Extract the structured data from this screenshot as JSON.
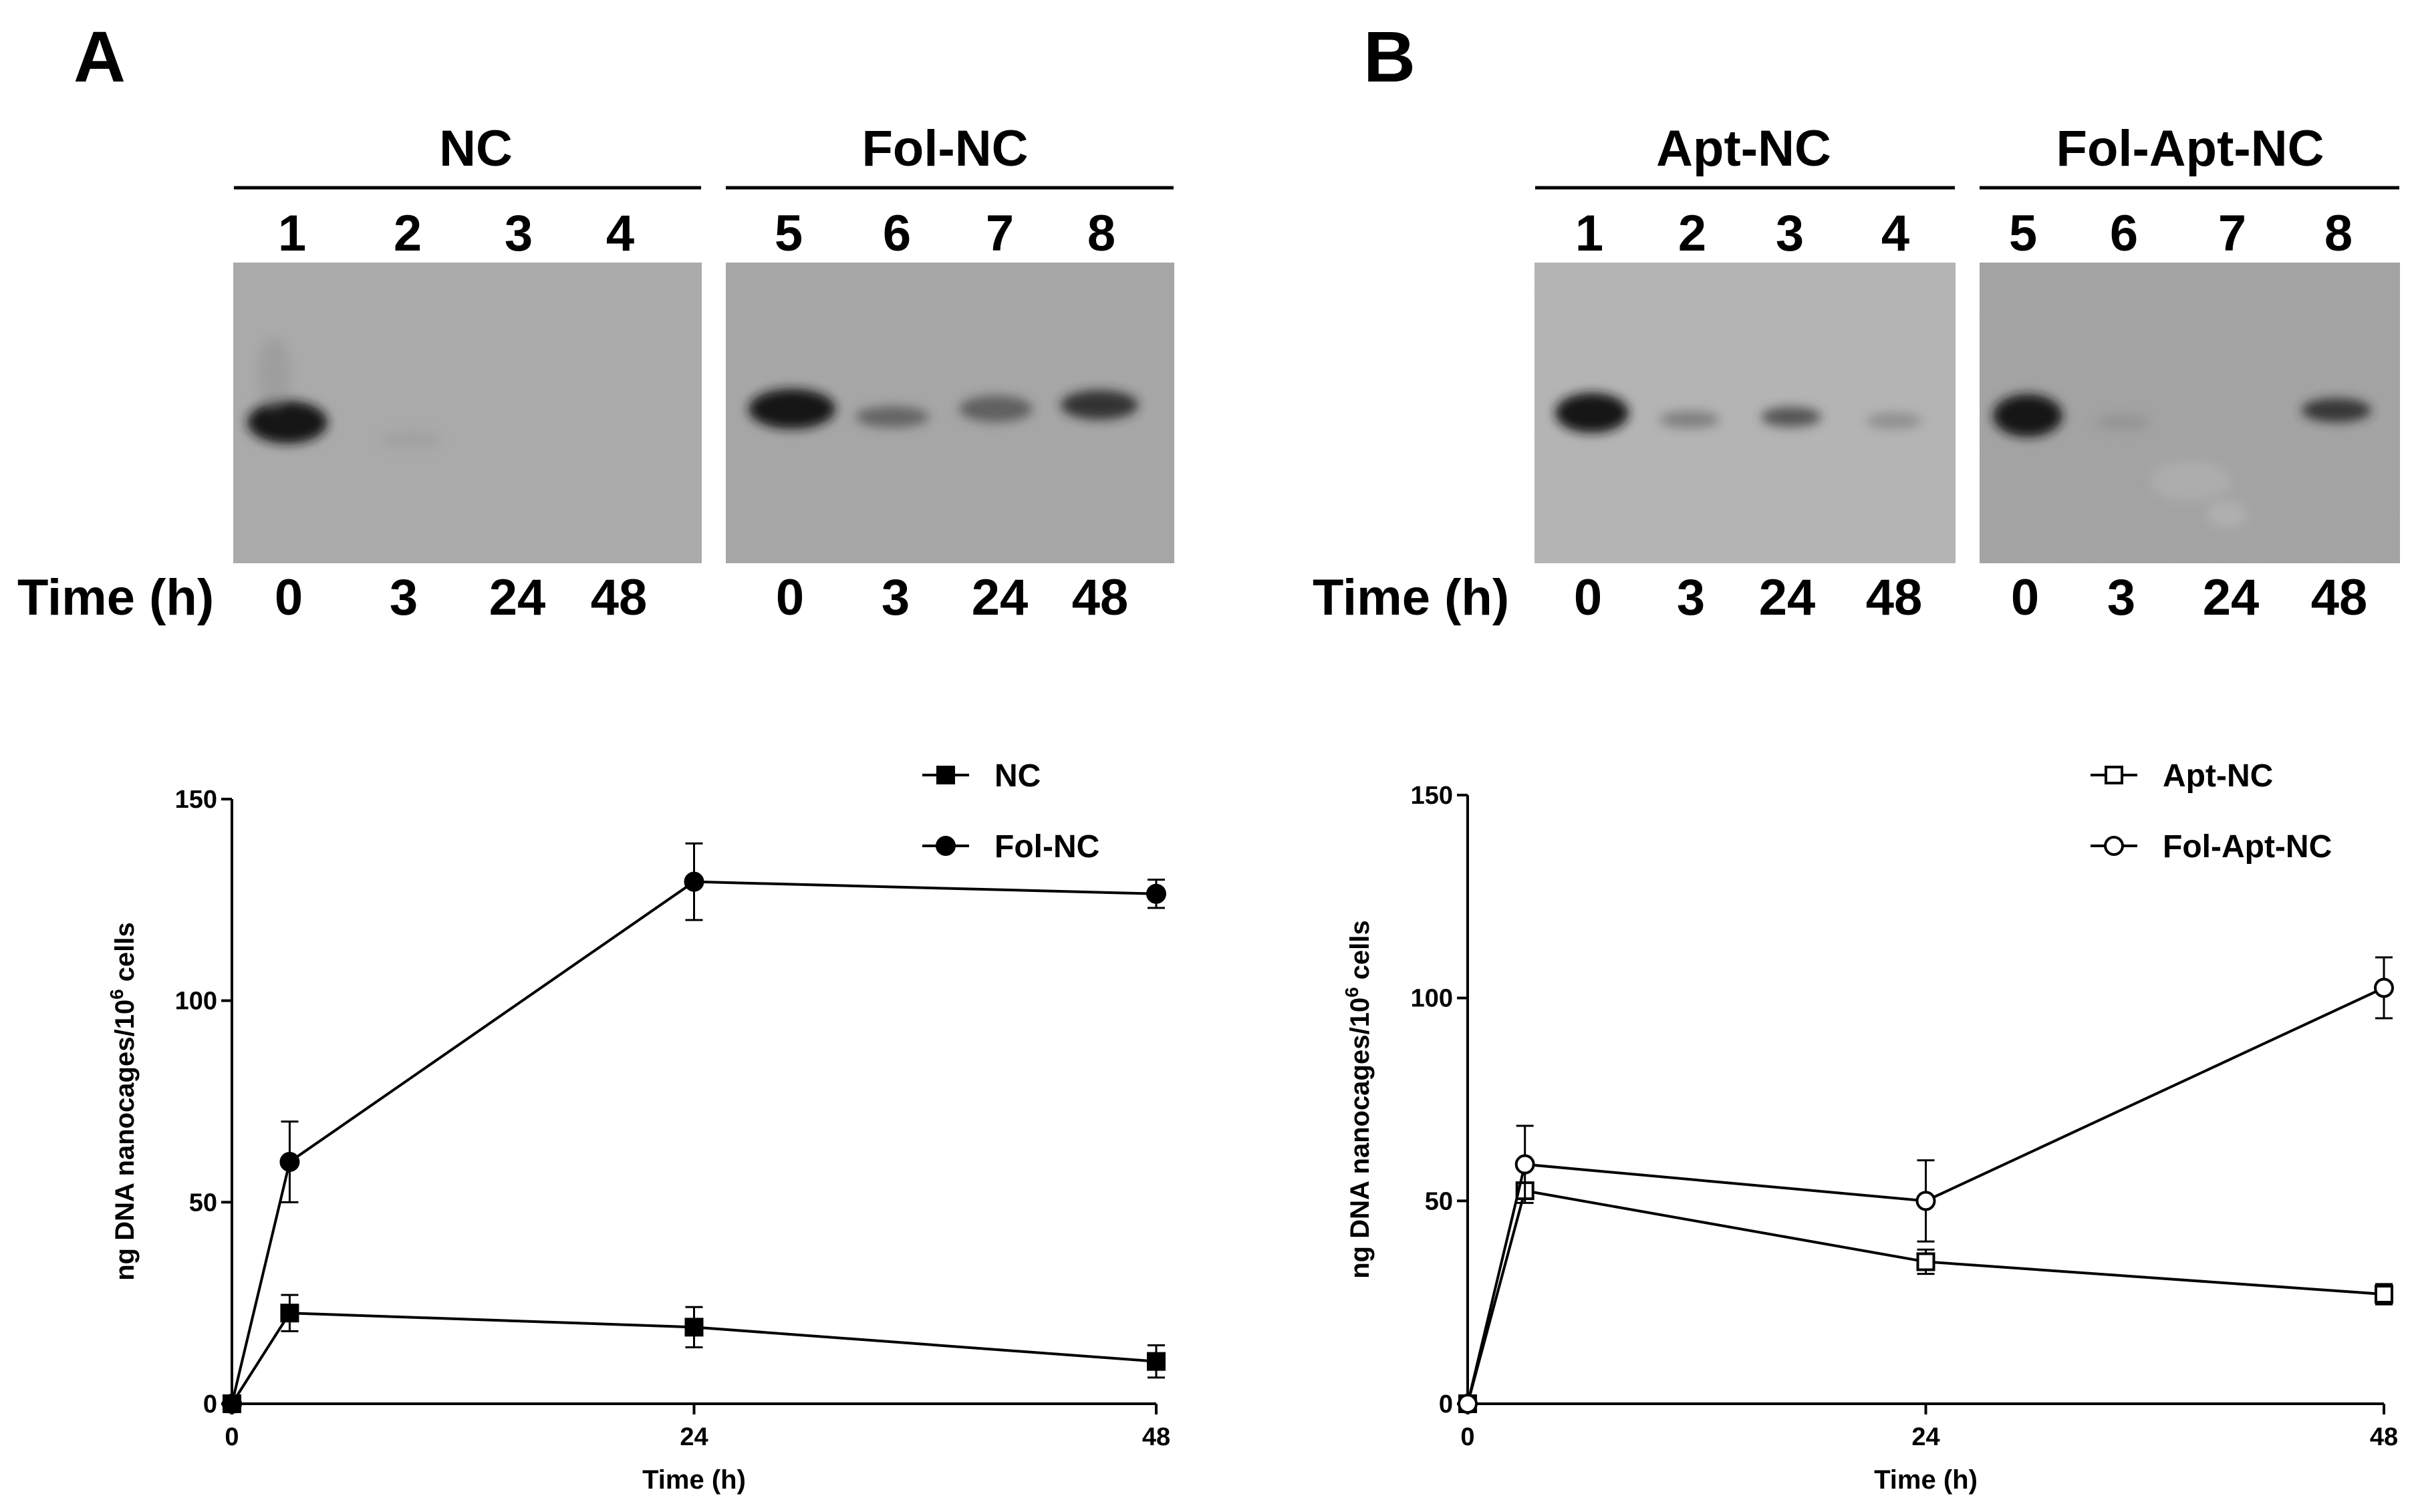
{
  "panels": [
    {
      "letter": "A",
      "gel": {
        "group1_title": "NC",
        "group2_title": "Fol-NC",
        "lanes": [
          "1",
          "2",
          "3",
          "4",
          "5",
          "6",
          "7",
          "8"
        ],
        "time_label": "Time (h)",
        "times": [
          "0",
          "3",
          "24",
          "48",
          "0",
          "3",
          "24",
          "48"
        ]
      }
    },
    {
      "letter": "B",
      "gel": {
        "group1_title": "Apt-NC",
        "group2_title": "Fol-Apt-NC",
        "lanes": [
          "1",
          "2",
          "3",
          "4",
          "5",
          "6",
          "7",
          "8"
        ],
        "time_label": "Time (h)",
        "times": [
          "0",
          "3",
          "24",
          "48",
          "0",
          "3",
          "24",
          "48"
        ]
      }
    }
  ],
  "chart_data": [
    {
      "type": "line",
      "panel": "A",
      "xlabel": "Time (h)",
      "ylabel": "ng DNA nanocages/10",
      "ylabel_sup": "6",
      "ylabel_tail": " cells",
      "xlim": [
        0,
        48
      ],
      "ylim": [
        0,
        150
      ],
      "xticks": [
        0,
        24,
        48
      ],
      "yticks": [
        0,
        50,
        100,
        150
      ],
      "legend_position": "top-right",
      "series": [
        {
          "name": "NC",
          "marker": "square-filled",
          "x": [
            0,
            3,
            24,
            48
          ],
          "y": [
            0,
            22.5,
            19,
            10.5
          ],
          "err": [
            0,
            4.5,
            5,
            4
          ]
        },
        {
          "name": "Fol-NC",
          "marker": "circle-filled",
          "x": [
            0,
            3,
            24,
            48
          ],
          "y": [
            0,
            60,
            129.5,
            126.5
          ],
          "err": [
            0,
            10,
            9.5,
            3.5
          ]
        }
      ]
    },
    {
      "type": "line",
      "panel": "B",
      "xlabel": "Time (h)",
      "ylabel": "ng DNA nanocages/10",
      "ylabel_sup": "6",
      "ylabel_tail": " cells",
      "xlim": [
        0,
        48
      ],
      "ylim": [
        0,
        150
      ],
      "xticks": [
        0,
        24,
        48
      ],
      "yticks": [
        0,
        50,
        100,
        150
      ],
      "legend_position": "top-right",
      "series": [
        {
          "name": "Apt-NC",
          "marker": "square-open",
          "x": [
            0,
            3,
            24,
            48
          ],
          "y": [
            0,
            52.5,
            35,
            27
          ],
          "err": [
            0,
            2,
            3,
            2.5
          ]
        },
        {
          "name": "Fol-Apt-NC",
          "marker": "circle-open",
          "x": [
            0,
            3,
            24,
            48
          ],
          "y": [
            0,
            59,
            50,
            102.5
          ],
          "err": [
            0,
            9.5,
            10,
            7.5
          ]
        }
      ]
    }
  ]
}
